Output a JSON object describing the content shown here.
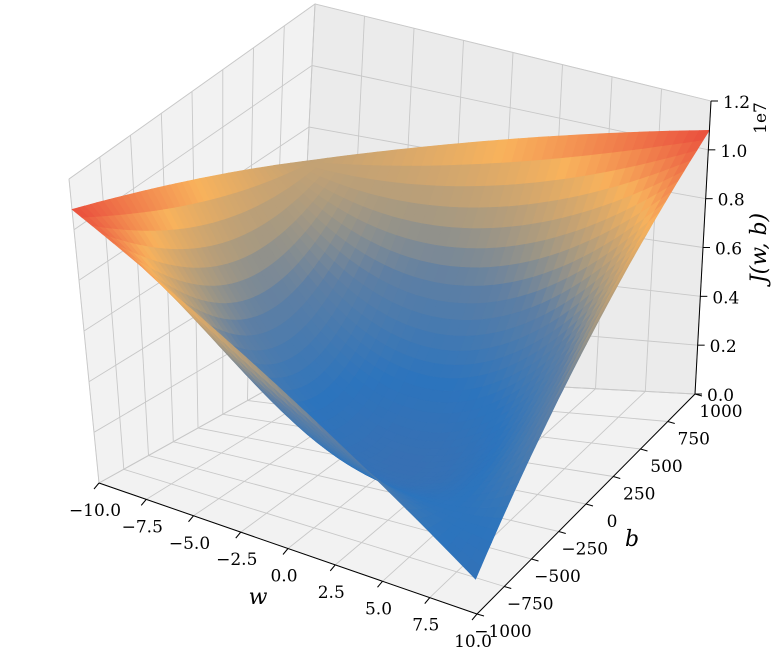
{
  "chart_data": {
    "type": "surface",
    "title": "",
    "xlabel": "w",
    "ylabel": "b",
    "zlabel": "J(w, b)",
    "z_offset_label": "1e7",
    "xlim": [
      -10,
      10
    ],
    "ylim": [
      -1000,
      1000
    ],
    "zlim": [
      0,
      12000000
    ],
    "x_ticks": [
      "−10.0",
      "−7.5",
      "−5.0",
      "−2.5",
      "0.0",
      "2.5",
      "5.0",
      "7.5",
      "10.0"
    ],
    "x_tick_values": [
      -10,
      -7.5,
      -5,
      -2.5,
      0,
      2.5,
      5,
      7.5,
      10
    ],
    "y_ticks": [
      "−1000",
      "−750",
      "−500",
      "−250",
      "0",
      "250",
      "500",
      "750",
      "1000"
    ],
    "y_tick_values": [
      -1000,
      -750,
      -500,
      -250,
      0,
      250,
      500,
      750,
      1000
    ],
    "z_ticks": [
      "0.0",
      "0.2",
      "0.4",
      "0.6",
      "0.8",
      "1.0",
      "1.2"
    ],
    "z_tick_values": [
      0,
      2000000,
      4000000,
      6000000,
      8000000,
      10000000,
      12000000
    ],
    "surface": {
      "w_range": [
        -10,
        10
      ],
      "b_range": [
        -1000,
        1000
      ],
      "corner_values": {
        "w_min_b_min": 10800000,
        "w_max_b_min": 1200000,
        "w_min_b_max": 6900000,
        "w_max_b_max": 10800000
      },
      "minimum_value": 200000
    },
    "colormap": [
      "#3b6fb0",
      "#2c74bd",
      "#5f7fa3",
      "#a99a80",
      "#f8b25c",
      "#e94b3c"
    ],
    "grid": true,
    "legend": "none"
  }
}
